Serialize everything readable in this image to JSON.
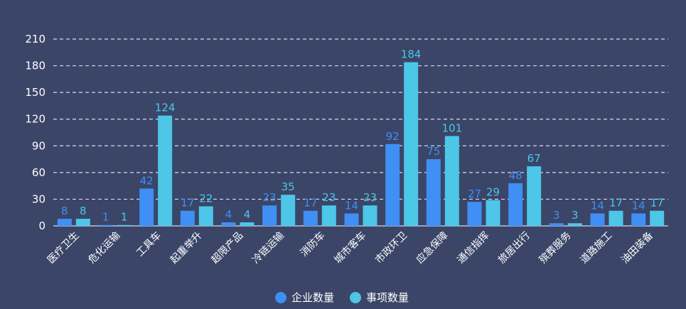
{
  "colors": {
    "background": "#3a4568",
    "gridline": "#d8dce8",
    "series_1": "#3f8ff5",
    "series_2": "#4dc6e8"
  },
  "chart_data": {
    "type": "bar",
    "categories": [
      "医疗卫生",
      "危化运输",
      "工具车",
      "起重举升",
      "超限产品",
      "冷链运输",
      "消防车",
      "城市客车",
      "市政环卫",
      "应急保障",
      "通信指挥",
      "旅居出行",
      "殡葬服务",
      "道路施工",
      "油田装备"
    ],
    "series": [
      {
        "name": "企业数量",
        "values": [
          8,
          1,
          42,
          17,
          4,
          23,
          17,
          14,
          92,
          75,
          27,
          48,
          3,
          14,
          14
        ]
      },
      {
        "name": "事项数量",
        "values": [
          8,
          1,
          124,
          22,
          4,
          35,
          23,
          23,
          184,
          101,
          29,
          67,
          3,
          17,
          17
        ]
      }
    ],
    "yticks": [
      0,
      30,
      60,
      90,
      120,
      150,
      180,
      210
    ],
    "ylim": [
      0,
      210
    ],
    "grid": true,
    "grid_style": "dashed",
    "legend_position": "bottom-center",
    "data_labels": true,
    "title": "",
    "xlabel": "",
    "ylabel": ""
  }
}
